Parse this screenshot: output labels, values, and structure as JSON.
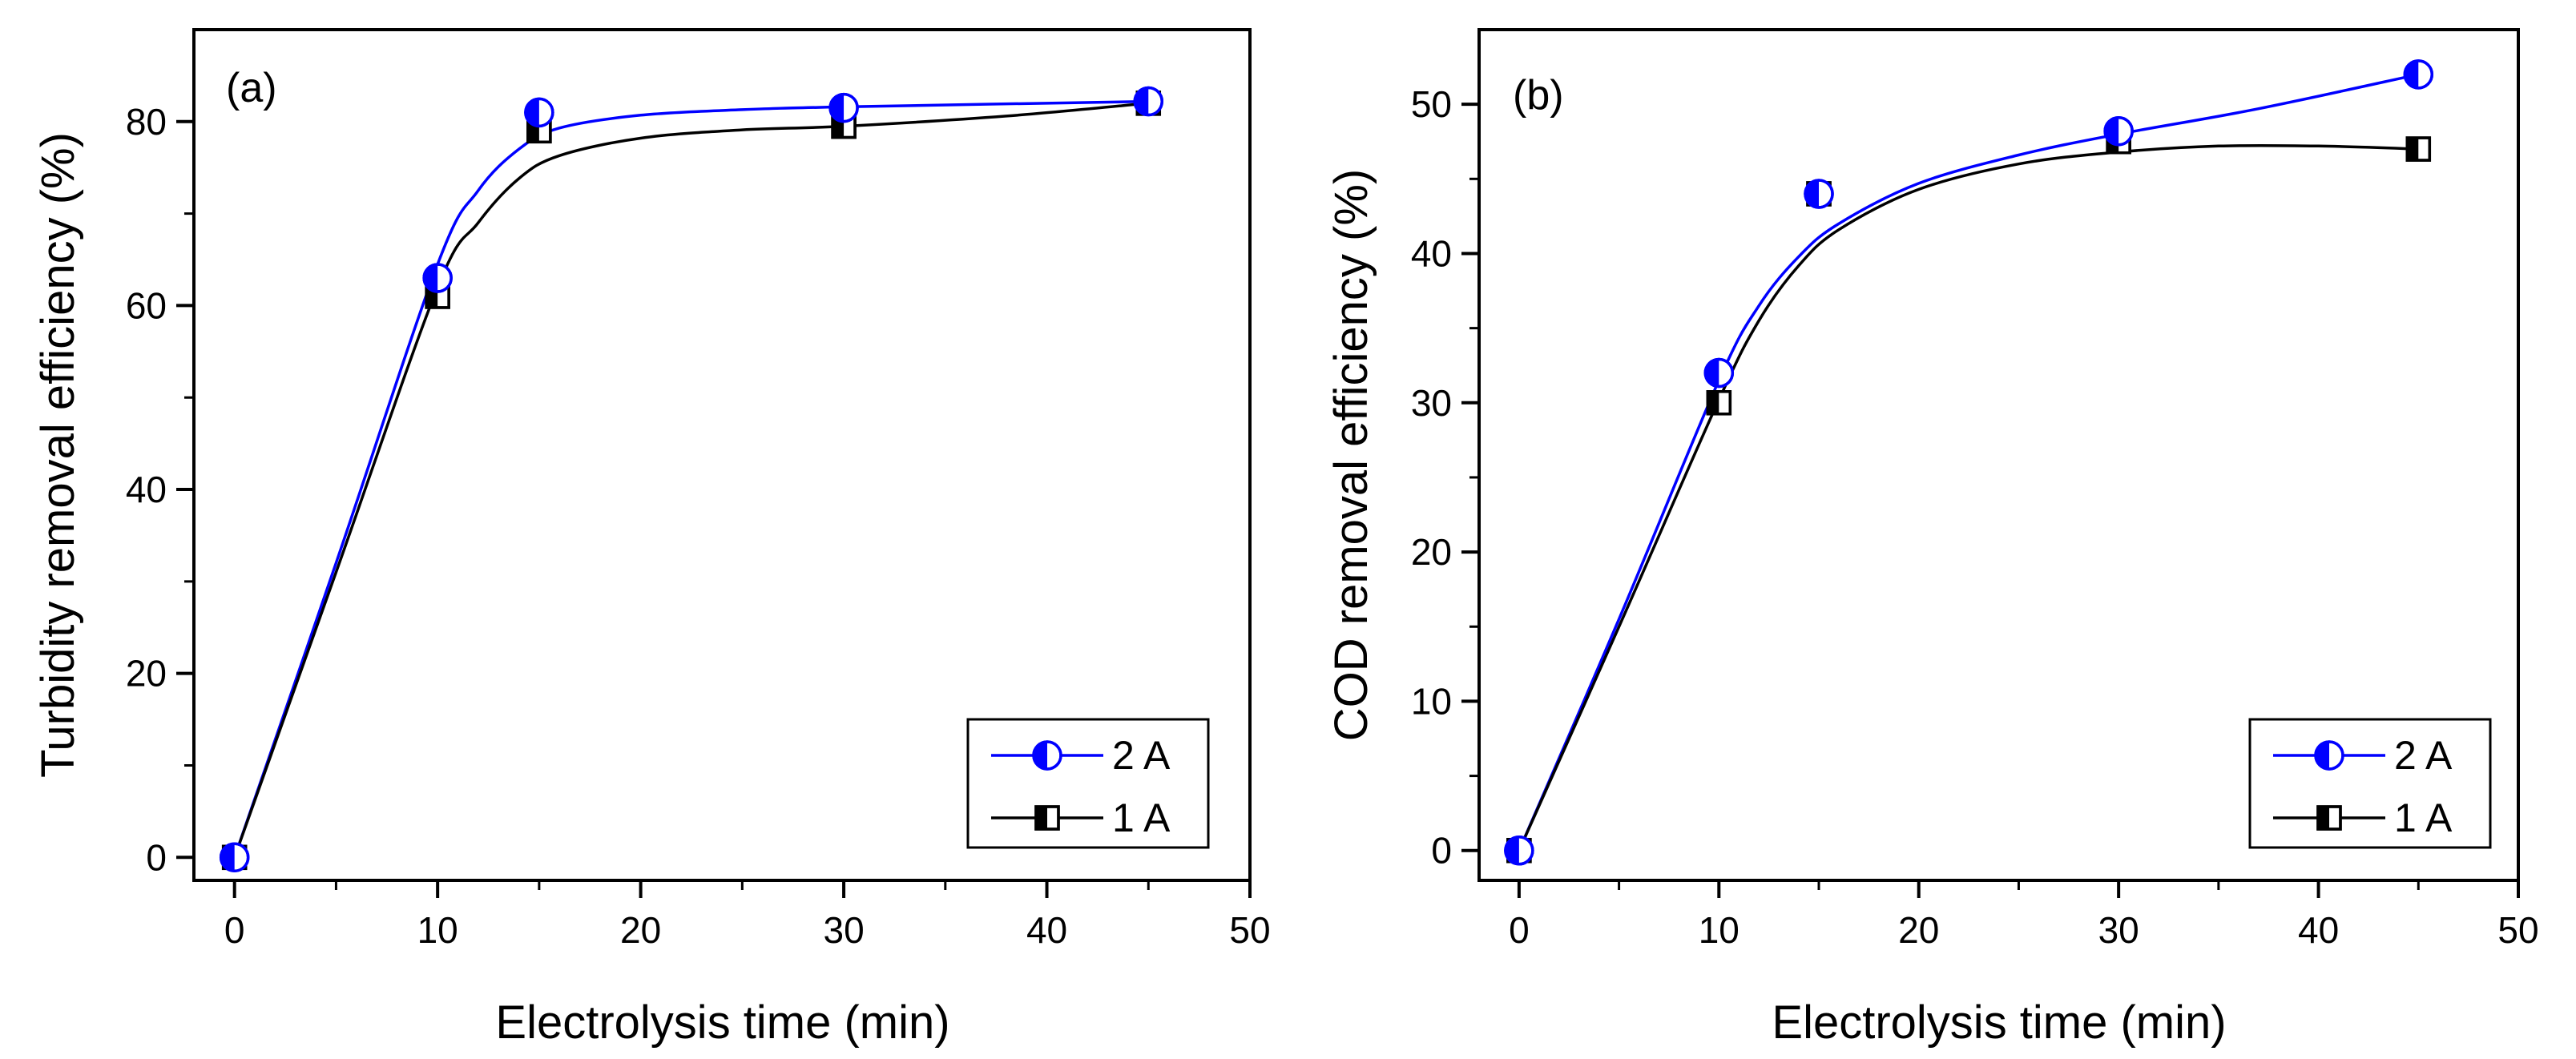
{
  "chart_data": [
    {
      "type": "line",
      "panel_label": "(a)",
      "xlabel": "Electrolysis time (min)",
      "ylabel": "Turbidity removal efficiency (%)",
      "xlim": [
        -2,
        50
      ],
      "ylim": [
        -2.5,
        90
      ],
      "xticks": [
        0,
        10,
        20,
        30,
        40,
        50
      ],
      "yticks": [
        0,
        20,
        40,
        60,
        80
      ],
      "xtick_labels": [
        "0",
        "10",
        "20",
        "30",
        "40",
        "50"
      ],
      "ytick_labels": [
        "0",
        "20",
        "40",
        "60",
        "80"
      ],
      "legend_position": "bottom-right",
      "series": [
        {
          "name": "2 A",
          "color": "#0000ff",
          "marker": "half-filled-circle",
          "x": [
            0,
            10,
            15,
            30,
            45
          ],
          "values": [
            0,
            63,
            81,
            81.5,
            82.2
          ],
          "fit_curve": [
            [
              0,
              0
            ],
            [
              5,
              32
            ],
            [
              10,
              64.5
            ],
            [
              12,
              72.5
            ],
            [
              14,
              77
            ],
            [
              16,
              79.3
            ],
            [
              20,
              80.7
            ],
            [
              25,
              81.3
            ],
            [
              30,
              81.6
            ],
            [
              45,
              82.2
            ]
          ]
        },
        {
          "name": "1 A",
          "color": "#000000",
          "marker": "half-filled-square",
          "x": [
            0,
            10,
            15,
            30,
            45
          ],
          "values": [
            0,
            61,
            79,
            79.5,
            82
          ],
          "fit_curve": [
            [
              0,
              0
            ],
            [
              5,
              31
            ],
            [
              10,
              62
            ],
            [
              12,
              69
            ],
            [
              14,
              73.8
            ],
            [
              16,
              76.3
            ],
            [
              20,
              78.2
            ],
            [
              25,
              79.1
            ],
            [
              30,
              79.5
            ],
            [
              38,
              80.6
            ],
            [
              45,
              82
            ]
          ]
        }
      ]
    },
    {
      "type": "line",
      "panel_label": "(b)",
      "xlabel": "Electrolysis time (min)",
      "ylabel": "COD removal efficiency (%)",
      "xlim": [
        -2,
        50
      ],
      "ylim": [
        -2,
        55
      ],
      "xticks": [
        0,
        10,
        20,
        30,
        40,
        50
      ],
      "yticks": [
        0,
        10,
        20,
        30,
        40,
        50
      ],
      "xtick_labels": [
        "0",
        "10",
        "20",
        "30",
        "40",
        "50"
      ],
      "ytick_labels": [
        "0",
        "10",
        "20",
        "30",
        "40",
        "50"
      ],
      "legend_position": "bottom-right",
      "series": [
        {
          "name": "2 A",
          "color": "#0000ff",
          "marker": "half-filled-circle",
          "x": [
            0,
            10,
            15,
            30,
            45
          ],
          "values": [
            0,
            32,
            44,
            48.2,
            52
          ],
          "fit_curve": [
            [
              0,
              0
            ],
            [
              5,
              15.5
            ],
            [
              10,
              31.5
            ],
            [
              12,
              36.5
            ],
            [
              14,
              39.8
            ],
            [
              16,
              42
            ],
            [
              20,
              44.7
            ],
            [
              25,
              46.6
            ],
            [
              30,
              48
            ],
            [
              37,
              49.7
            ],
            [
              45,
              52
            ]
          ]
        },
        {
          "name": "1 A",
          "color": "#000000",
          "marker": "half-filled-square",
          "x": [
            0,
            10,
            15,
            30,
            45
          ],
          "values": [
            0,
            30,
            44,
            47.5,
            47
          ],
          "fit_curve": [
            [
              0,
              0
            ],
            [
              5,
              15
            ],
            [
              10,
              30.2
            ],
            [
              12,
              35.5
            ],
            [
              14,
              39.2
            ],
            [
              16,
              41.6
            ],
            [
              20,
              44.3
            ],
            [
              25,
              46
            ],
            [
              30,
              46.8
            ],
            [
              35,
              47.2
            ],
            [
              40,
              47.2
            ],
            [
              45,
              47
            ]
          ]
        }
      ]
    }
  ]
}
